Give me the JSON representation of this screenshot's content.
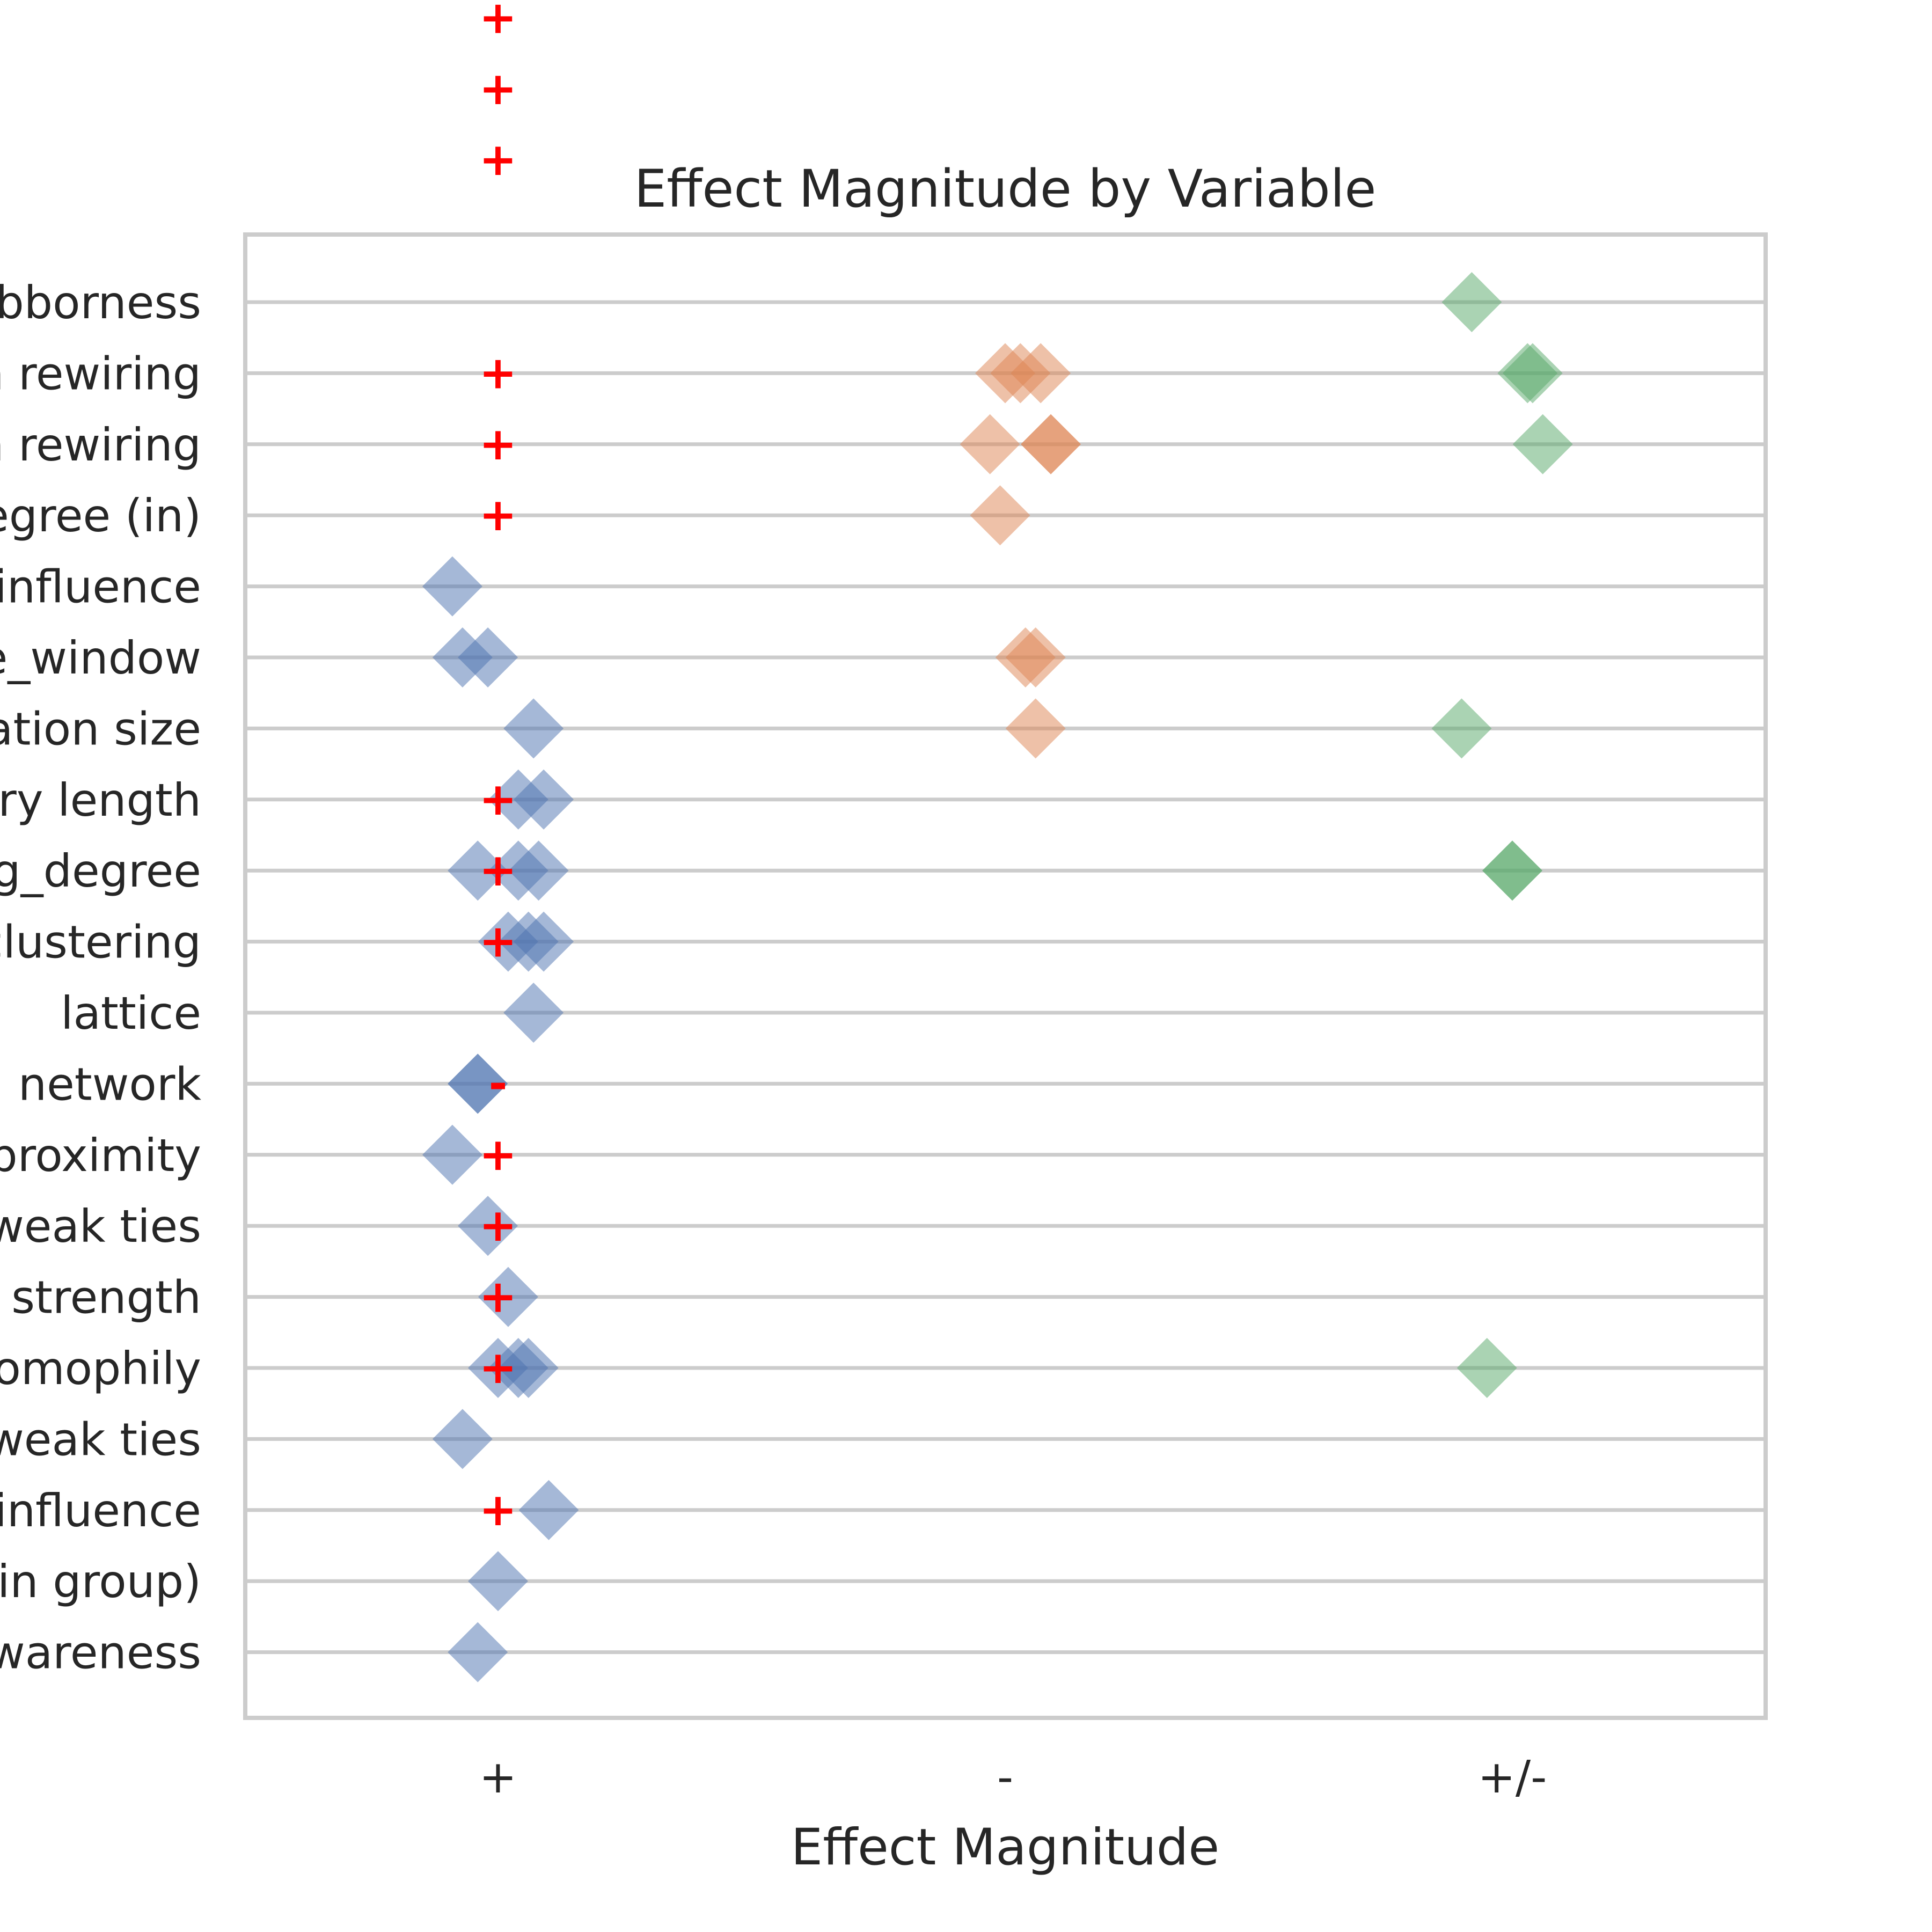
{
  "chart_data": {
    "type": "scatter",
    "title": "Effect Magnitude by Variable",
    "xlabel": "Effect Magnitude",
    "ylabel": "",
    "x_categories": [
      "+",
      "-",
      "+/-"
    ],
    "y_categories": [
      "bborness",
      "n rewiring",
      "n rewiring",
      "egree (in)",
      "influence",
      "e_window",
      "ation size",
      "ory length",
      "g_degree",
      "clustering",
      "lattice",
      "g network",
      "proximity",
      "weak ties",
      "e strength",
      "omophily",
      "weak ties",
      "influence",
      "(in group)",
      "wareness"
    ],
    "grid": true,
    "legend": "none",
    "colors": {
      "+": "#4c72b0",
      "-": "#dd8452",
      "+/-": "#55a868",
      "marker_text": "#ff0000"
    },
    "series": [
      {
        "category": "+",
        "points": [
          {
            "row": 4,
            "x": -0.09
          },
          {
            "row": 5,
            "x": -0.07
          },
          {
            "row": 5,
            "x": -0.02
          },
          {
            "row": 6,
            "x": 0.07
          },
          {
            "row": 7,
            "x": 0.04
          },
          {
            "row": 7,
            "x": 0.09
          },
          {
            "row": 8,
            "x": -0.04
          },
          {
            "row": 8,
            "x": 0.04
          },
          {
            "row": 8,
            "x": 0.08
          },
          {
            "row": 9,
            "x": 0.02
          },
          {
            "row": 9,
            "x": 0.06
          },
          {
            "row": 9,
            "x": 0.09
          },
          {
            "row": 10,
            "x": 0.07
          },
          {
            "row": 11,
            "x": -0.04
          },
          {
            "row": 11,
            "x": -0.04
          },
          {
            "row": 12,
            "x": -0.09
          },
          {
            "row": 13,
            "x": -0.02
          },
          {
            "row": 14,
            "x": 0.02
          },
          {
            "row": 15,
            "x": 0.0
          },
          {
            "row": 15,
            "x": 0.04
          },
          {
            "row": 15,
            "x": 0.06
          },
          {
            "row": 16,
            "x": -0.07
          },
          {
            "row": 17,
            "x": 0.1
          },
          {
            "row": 18,
            "x": 0.0
          },
          {
            "row": 19,
            "x": -0.04
          }
        ]
      },
      {
        "category": "-",
        "points": [
          {
            "row": 1,
            "x": 1.0
          },
          {
            "row": 1,
            "x": 1.03
          },
          {
            "row": 1,
            "x": 1.07
          },
          {
            "row": 2,
            "x": 0.97
          },
          {
            "row": 2,
            "x": 1.09
          },
          {
            "row": 2,
            "x": 1.09
          },
          {
            "row": 3,
            "x": 0.99
          },
          {
            "row": 5,
            "x": 1.04
          },
          {
            "row": 5,
            "x": 1.06
          },
          {
            "row": 6,
            "x": 1.06
          }
        ]
      },
      {
        "category": "+/-",
        "points": [
          {
            "row": 0,
            "x": 1.92
          },
          {
            "row": 1,
            "x": 2.03
          },
          {
            "row": 1,
            "x": 2.04
          },
          {
            "row": 2,
            "x": 2.06
          },
          {
            "row": 6,
            "x": 1.9
          },
          {
            "row": 8,
            "x": 2.0
          },
          {
            "row": 8,
            "x": 2.0
          },
          {
            "row": 15,
            "x": 1.95
          }
        ]
      }
    ],
    "text_markers": [
      {
        "label": "+",
        "row": -4,
        "x": 0.0
      },
      {
        "label": "+",
        "row": -3,
        "x": 0.0
      },
      {
        "label": "+",
        "row": -2,
        "x": 0.0
      },
      {
        "label": "+",
        "row": 1,
        "x": 0.0
      },
      {
        "label": "+",
        "row": 2,
        "x": 0.0
      },
      {
        "label": "+",
        "row": 3,
        "x": 0.0
      },
      {
        "label": "+",
        "row": 7,
        "x": 0.0
      },
      {
        "label": "+",
        "row": 8,
        "x": 0.0
      },
      {
        "label": "+",
        "row": 9,
        "x": 0.0
      },
      {
        "label": "-",
        "row": 11,
        "x": 0.0
      },
      {
        "label": "+",
        "row": 12,
        "x": 0.0
      },
      {
        "label": "+",
        "row": 13,
        "x": 0.0
      },
      {
        "label": "+",
        "row": 14,
        "x": 0.0
      },
      {
        "label": "+",
        "row": 15,
        "x": 0.0
      },
      {
        "label": "+",
        "row": 17,
        "x": 0.0
      }
    ]
  }
}
